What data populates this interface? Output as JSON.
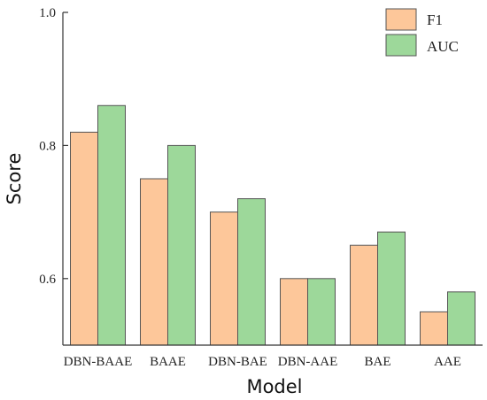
{
  "chart_data": {
    "type": "bar",
    "xlabel": "Model",
    "ylabel": "Score",
    "categories": [
      "DBN-BAAE",
      "BAAE",
      "DBN-BAE",
      "DBN-AAE",
      "BAE",
      "AAE"
    ],
    "series": [
      {
        "name": "F1",
        "values": [
          0.82,
          0.75,
          0.7,
          0.6,
          0.65,
          0.55
        ],
        "color": "#FDC79A"
      },
      {
        "name": "AUC",
        "values": [
          0.86,
          0.8,
          0.72,
          0.6,
          0.67,
          0.58
        ],
        "color": "#9DD89A"
      }
    ],
    "ylim": [
      0.5,
      1.0
    ],
    "yticks": [
      "0.6",
      "0.8",
      "1.0"
    ],
    "ytick_values": [
      0.6,
      0.8,
      1.0
    ],
    "grid": false,
    "legend": "top-right"
  }
}
